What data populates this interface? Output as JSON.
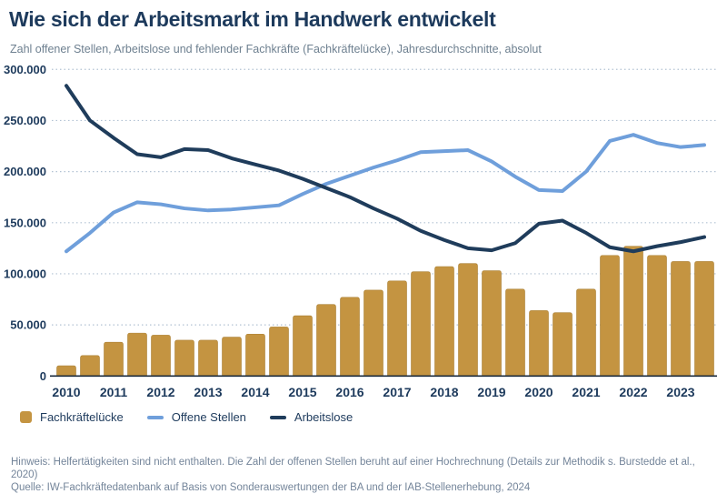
{
  "header": {
    "title": "Wie sich der Arbeitsmarkt im Handwerk entwickelt",
    "subtitle": "Zahl offener Stellen, Arbeitslose und fehlender Fachkräfte (Fachkräftelücke), Jahresdurchschnitte, absolut"
  },
  "legend": {
    "items": [
      {
        "label": "Fachkräftelücke",
        "color": "#C49441",
        "swatch": "square"
      },
      {
        "label": "Offene Stellen",
        "color": "#6F9FDB",
        "swatch": "line"
      },
      {
        "label": "Arbeitslose",
        "color": "#1F3C5B",
        "swatch": "line"
      }
    ]
  },
  "footer": {
    "note": "Hinweis: Helfertätigkeiten sind nicht enthalten. Die Zahl der offenen Stellen beruht auf einer Hochrechnung (Details zur Methodik s. Burstedde et al., 2020)",
    "source": "Quelle: IW-Fachkräftedatenbank auf Basis von Sonderauswertungen der BA und der IAB-Stellenerhebung, 2024"
  },
  "chart_data": {
    "type": "combo-bar-line",
    "categories": [
      "2010-H1",
      "2010-H2",
      "2011-H1",
      "2011-H2",
      "2012-H1",
      "2012-H2",
      "2013-H1",
      "2013-H2",
      "2014-H1",
      "2014-H2",
      "2015-H1",
      "2015-H2",
      "2016-H1",
      "2016-H2",
      "2017-H1",
      "2017-H2",
      "2018-H1",
      "2018-H2",
      "2019-H1",
      "2019-H2",
      "2020-H1",
      "2020-H2",
      "2021-H1",
      "2021-H2",
      "2022-H1",
      "2022-H2",
      "2023-H1",
      "2023-H2"
    ],
    "x_tick_labels": [
      "2010",
      "2011",
      "2012",
      "2013",
      "2014",
      "2015",
      "2016",
      "2017",
      "2018",
      "2019",
      "2020",
      "2021",
      "2022",
      "2023"
    ],
    "y_ticks": [
      {
        "value": 0,
        "label": "0"
      },
      {
        "value": 50000,
        "label": "50.000"
      },
      {
        "value": 100000,
        "label": "100.000"
      },
      {
        "value": 150000,
        "label": "150.000"
      },
      {
        "value": 200000,
        "label": "200.000"
      },
      {
        "value": 250000,
        "label": "250.000"
      },
      {
        "value": 300000,
        "label": "300.000"
      }
    ],
    "ylim": [
      0,
      300000
    ],
    "grid": "horizontal-dotted",
    "bar_series": {
      "name": "Fachkräftelücke",
      "color": "#C49441",
      "values": [
        10000,
        20000,
        33000,
        42000,
        40000,
        35000,
        35000,
        38000,
        41000,
        48000,
        59000,
        70000,
        77000,
        84000,
        93000,
        102000,
        107000,
        110000,
        103000,
        85000,
        64000,
        62000,
        85000,
        118000,
        127000,
        118000,
        112000,
        112000
      ]
    },
    "line_series": [
      {
        "name": "Offene Stellen",
        "color": "#6F9FDB",
        "values": [
          122000,
          140000,
          160000,
          170000,
          168000,
          164000,
          162000,
          163000,
          165000,
          167000,
          178000,
          188000,
          196000,
          204000,
          211000,
          219000,
          220000,
          221000,
          210000,
          195000,
          182000,
          181000,
          200000,
          230000,
          236000,
          228000,
          224000,
          226000
        ]
      },
      {
        "name": "Arbeitslose",
        "color": "#1F3C5B",
        "values": [
          284000,
          250000,
          233000,
          217000,
          214000,
          222000,
          221000,
          213000,
          207000,
          201000,
          193000,
          184000,
          175000,
          164000,
          154000,
          142000,
          133000,
          125000,
          123000,
          130000,
          149000,
          152000,
          140000,
          126000,
          122000,
          127000,
          131000,
          136000
        ]
      }
    ]
  }
}
